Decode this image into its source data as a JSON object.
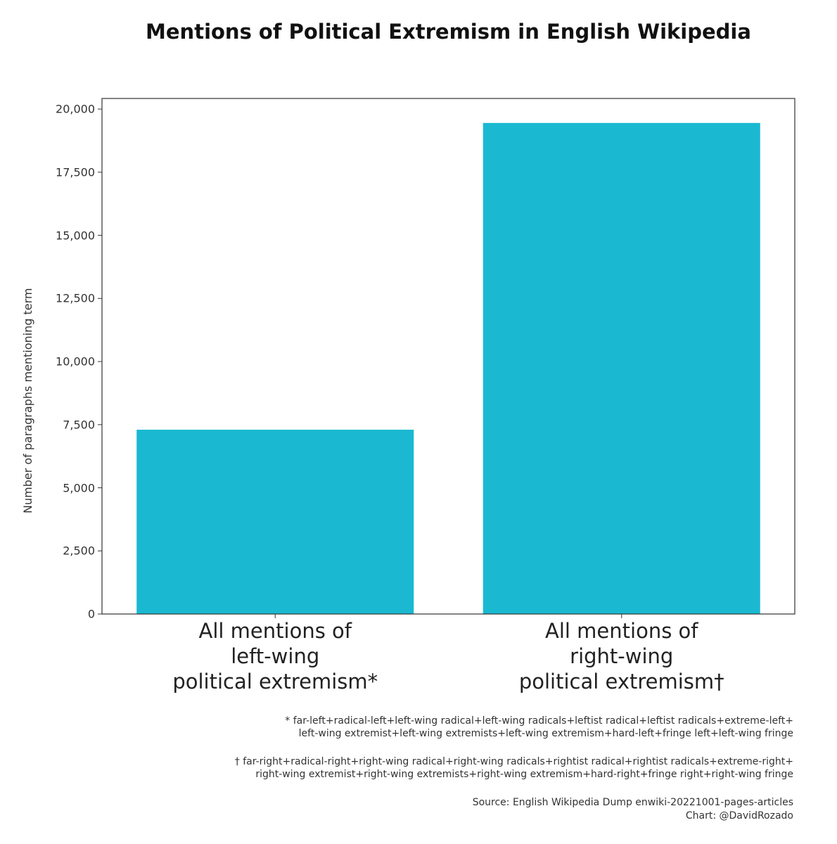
{
  "chart_data": {
    "type": "bar",
    "title": "Mentions of Political Extremism in English Wikipedia",
    "y_label": "Number of paragraphs mentioning term",
    "categories": [
      "All mentions of\nleft-wing\npolitical extremism*",
      "All mentions of\nright-wing\npolitical extremism†"
    ],
    "values": [
      7300,
      19450
    ],
    "color": "#1ab9d1",
    "ylim": [
      0,
      20420
    ],
    "yticks": [
      0,
      {
        "value": 2500,
        "label": "2,500"
      },
      {
        "value": 5000,
        "label": "5,000"
      },
      {
        "value": 7500,
        "label": "7,500"
      },
      {
        "value": 10000,
        "label": "10,000"
      },
      {
        "value": 12500,
        "label": "12,500"
      },
      {
        "value": 15000,
        "label": "15,000"
      },
      {
        "value": 17500,
        "label": "17,500"
      },
      {
        "value": 20000,
        "label": "20,000"
      }
    ],
    "footnotes": [
      "* far-left+radical-left+left-wing radical+left-wing radicals+leftist radical+leftist radicals+extreme-left+\nleft-wing extremist+left-wing extremists+left-wing extremism+hard-left+fringe left+left-wing fringe",
      "† far-right+radical-right+right-wing radical+right-wing radicals+rightist radical+rightist radicals+extreme-right+\nright-wing extremist+right-wing extremists+right-wing extremism+hard-right+fringe right+right-wing fringe"
    ],
    "source": "Source: English Wikipedia Dump enwiki-20221001-pages-articles",
    "credit": "Chart: @DavidRozado"
  }
}
